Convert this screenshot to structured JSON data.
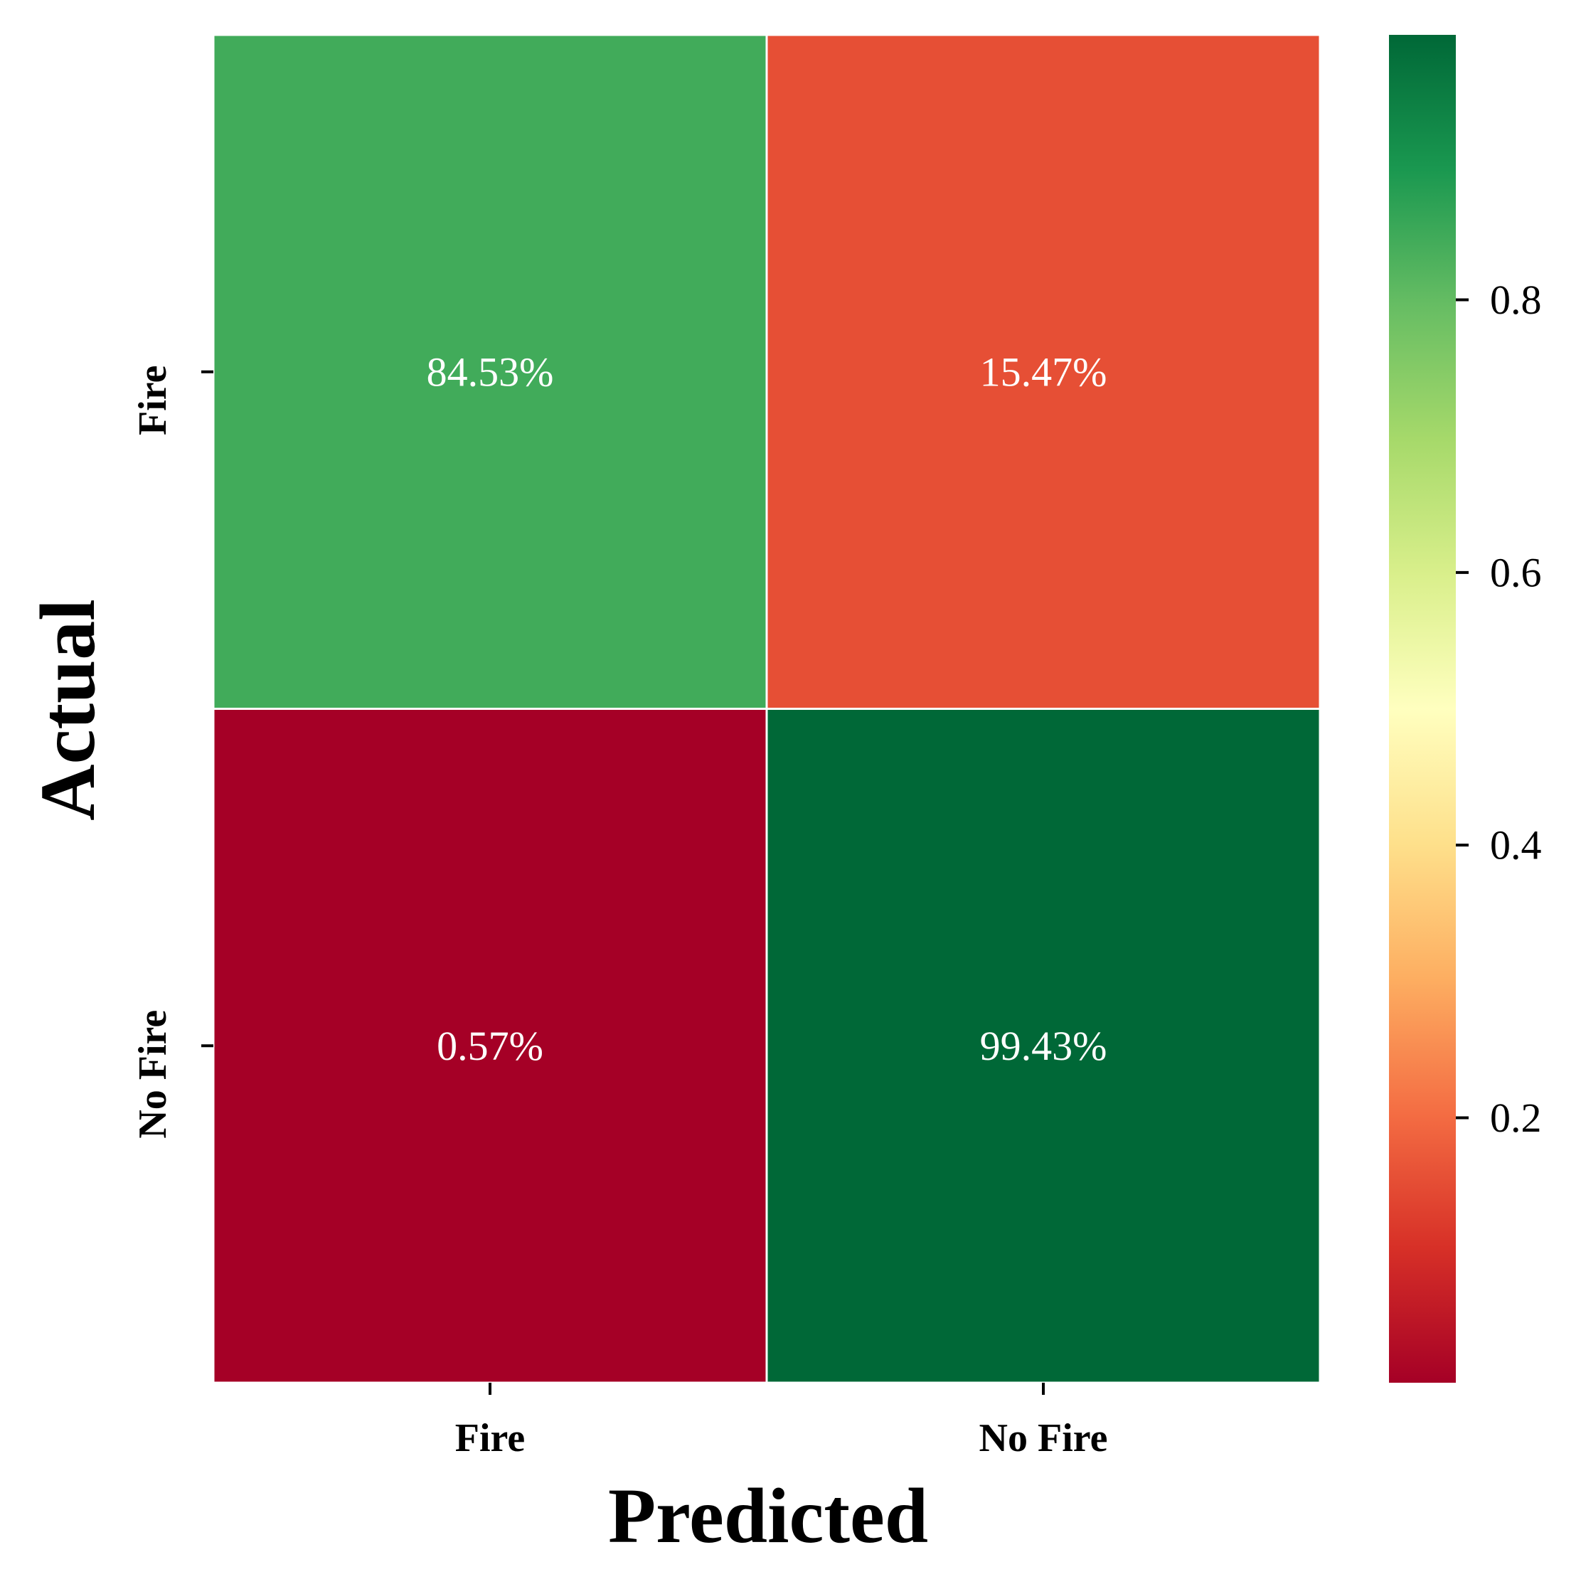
{
  "chart_data": {
    "type": "heatmap",
    "xlabel": "Predicted",
    "ylabel": "Actual",
    "x_categories": [
      "Fire",
      "No Fire"
    ],
    "y_categories": [
      "Fire",
      "No Fire"
    ],
    "values": [
      [
        0.8453,
        0.1547
      ],
      [
        0.0057,
        0.9943
      ]
    ],
    "annotations": [
      [
        "84.53%",
        "15.47%"
      ],
      [
        "0.57%",
        "99.43%"
      ]
    ],
    "colormap": "RdYlGn",
    "vmin": 0.0057,
    "vmax": 0.9943,
    "colorbar_ticks": [
      0.2,
      0.4,
      0.6,
      0.8
    ],
    "colorbar_tick_labels": [
      "0.2",
      "0.4",
      "0.6",
      "0.8"
    ],
    "cell_border_color": "#ffffff",
    "grid": false
  }
}
